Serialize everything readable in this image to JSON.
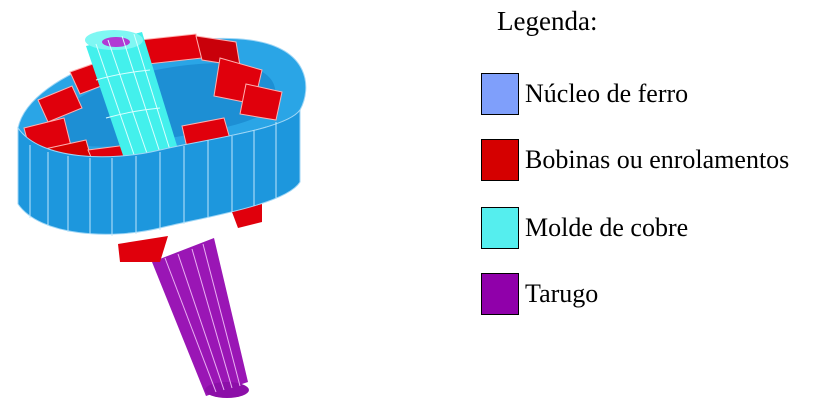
{
  "legend": {
    "title": "Legenda:",
    "items": [
      {
        "label": "Núcleo de ferro",
        "color": "#7f9ffb"
      },
      {
        "label": "Bobinas ou enrolamentos",
        "color": "#d50000"
      },
      {
        "label": "Molde de cobre",
        "color": "#55eeee"
      },
      {
        "label": "Tarugo",
        "color": "#9000aa"
      }
    ]
  },
  "model_colors": {
    "ring_face": "#1d97dd",
    "ring_top": "#2aa5e6",
    "coil": "#e0000c",
    "mold": "#43f0ec",
    "billet": "#9a16b5"
  }
}
